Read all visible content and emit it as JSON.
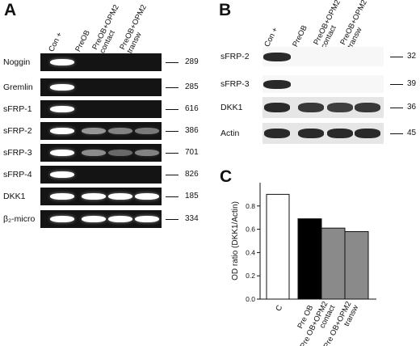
{
  "panels": {
    "A": {
      "letter": "A",
      "lanes": [
        "Con +",
        "PreOB",
        "PreOB+OPM2\ncontact",
        "PreOB+OPM2\ntransw"
      ],
      "rows": [
        {
          "label": "Noggin",
          "size": "289",
          "bands": [
            1,
            0,
            0,
            0
          ]
        },
        {
          "label": "Gremlin",
          "size": "285",
          "bands": [
            1,
            0,
            0,
            0
          ]
        },
        {
          "label": "sFRP-1",
          "size": "616",
          "bands": [
            1,
            0,
            0,
            0
          ]
        },
        {
          "label": "sFRP-2",
          "size": "386",
          "bands": [
            1,
            0.55,
            0.45,
            0.4
          ]
        },
        {
          "label": "sFRP-3",
          "size": "701",
          "bands": [
            1,
            0.5,
            0.3,
            0.45
          ]
        },
        {
          "label": "sFRP-4",
          "size": "826",
          "bands": [
            1,
            0,
            0,
            0
          ]
        },
        {
          "label": "DKK1",
          "size": "185",
          "bands": [
            1,
            1,
            1,
            1
          ]
        },
        {
          "label": "β₂-micro",
          "size": "334",
          "bands": [
            1,
            1,
            1,
            1
          ]
        }
      ]
    },
    "B": {
      "letter": "B",
      "lanes": [
        "Con +",
        "PreOB",
        "PreOB+OPM2\ncontact",
        "PreOB+OPM2\ntransw"
      ],
      "rows": [
        {
          "label": "sFRP-2",
          "size": "32",
          "bands": [
            1,
            0,
            0,
            0
          ]
        },
        {
          "label": "sFRP-3",
          "size": "39",
          "bands": [
            1,
            0,
            0,
            0
          ]
        },
        {
          "label": "DKK1",
          "size": "36",
          "bands": [
            1,
            0.9,
            0.85,
            0.9
          ]
        },
        {
          "label": "Actin",
          "size": "45",
          "bands": [
            1,
            1,
            1,
            1
          ]
        }
      ]
    },
    "C": {
      "letter": "C"
    }
  },
  "chart_data": {
    "type": "bar",
    "categories": [
      "C",
      "Pre OB",
      "Pre OB+OPM2\ncontact",
      "Pre OB+OPM2\ntransw"
    ],
    "values": [
      0.9,
      0.69,
      0.61,
      0.58
    ],
    "fills": [
      "#ffffff",
      "#000000",
      "#8a8a8a",
      "#8a8a8a"
    ],
    "ylabel": "OD ratio  (DKK1/Actin)",
    "ylim": [
      0,
      1.0
    ],
    "yticks": [
      0.0,
      0.2,
      0.4,
      0.6,
      0.8
    ],
    "ytick_labels": [
      "0.0",
      "0.2",
      "0.4",
      "0.6",
      "0.8"
    ]
  }
}
